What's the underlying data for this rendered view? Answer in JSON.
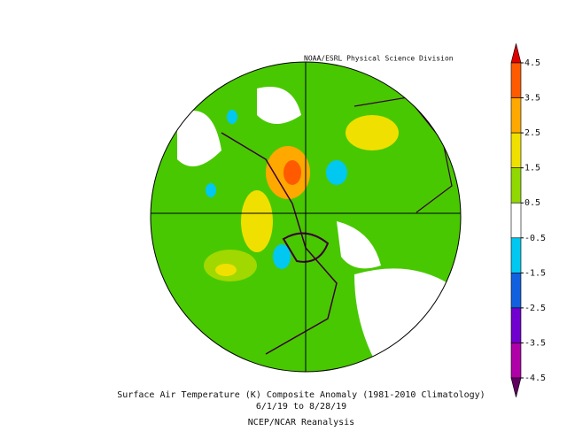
{
  "header": {
    "credit": "NOAA/ESRL Physical Science Division"
  },
  "colorbar": {
    "ticks": [
      4.5,
      3.5,
      2.5,
      1.5,
      0.5,
      -0.5,
      -1.5,
      -2.5,
      -3.5,
      -4.5
    ],
    "colors": [
      "#e00000",
      "#ff5a00",
      "#ffa800",
      "#f0e000",
      "#90d800",
      "#ffffff",
      "#00c8f0",
      "#1060e0",
      "#7000d0",
      "#b000a8",
      "#600060"
    ]
  },
  "footer": {
    "title": "Surface Air Temperature (K) Composite Anomaly (1981-2010 Climatology)",
    "dates": "6/1/19  to 8/28/19",
    "source": "NCEP/NCAR Reanalysis"
  }
}
